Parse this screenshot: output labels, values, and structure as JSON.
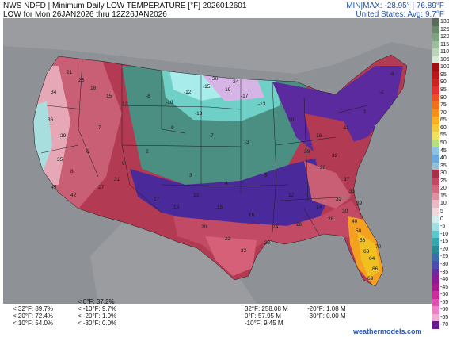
{
  "header": {
    "line1": "NWS NDFD | Minimum Daily LOW TEMPERATURE [°F]  2026012601",
    "line2": "LOW for Mon 26JAN2026 thru 12Z26JAN2026",
    "minmax": "MIN|MAX: -28.95°  | 76.89°F",
    "avg": "United States: Avg: 9.7°F"
  },
  "colorbar": {
    "labels": [
      "130",
      "125",
      "120",
      "115",
      "110",
      "105",
      "100",
      "95",
      "90",
      "85",
      "80",
      "75",
      "70",
      "65",
      "60",
      "55",
      "50",
      "45",
      "40",
      "35",
      "30",
      "25",
      "20",
      "15",
      "10",
      "5",
      "0",
      "-5",
      "-10",
      "-15",
      "-20",
      "-25",
      "-30",
      "-35",
      "-40",
      "-45",
      "-50",
      "-55",
      "-60",
      "-65",
      "-70"
    ],
    "colors": [
      "#5a6b5a",
      "#6b8a6b",
      "#7fa37f",
      "#9bbd9b",
      "#b9d4b9",
      "#d6e8d6",
      "#a01010",
      "#b81818",
      "#cc2222",
      "#e03030",
      "#ec5020",
      "#f07018",
      "#f49018",
      "#f8b020",
      "#f6c838",
      "#f0e060",
      "#b7e07a",
      "#8cc2e8",
      "#6aa8e0",
      "#9ac0d8",
      "#a83048",
      "#c04860",
      "#d06a7e",
      "#e090a0",
      "#ecb8c4",
      "#f0d8dc",
      "#d4ecec",
      "#9ee0e0",
      "#5ac8cc",
      "#38a8b0",
      "#2a8a94",
      "#3a6ea8",
      "#4a4ab0",
      "#6a2aa0",
      "#8a1a98",
      "#aa1890",
      "#cc2c9c",
      "#e050b0",
      "#ee80c8",
      "#f4aad8",
      "#6a1a90"
    ]
  },
  "map_labels": [
    {
      "t": "21"
    },
    {
      "t": "25"
    },
    {
      "t": "18"
    },
    {
      "t": "15"
    },
    {
      "t": "13"
    },
    {
      "t": "-8"
    },
    {
      "t": "-10"
    },
    {
      "t": "-12"
    },
    {
      "t": "-15"
    },
    {
      "t": "-19"
    },
    {
      "t": "-17"
    },
    {
      "t": "-13"
    },
    {
      "t": "-20"
    },
    {
      "t": "-24"
    },
    {
      "t": "-18"
    },
    {
      "t": "-9"
    },
    {
      "t": "-7"
    },
    {
      "t": "-3"
    },
    {
      "t": "2"
    },
    {
      "t": "9"
    },
    {
      "t": "7"
    },
    {
      "t": "6"
    },
    {
      "t": "8"
    },
    {
      "t": "3"
    },
    {
      "t": "4"
    },
    {
      "t": "5"
    },
    {
      "t": "12"
    },
    {
      "t": "14"
    },
    {
      "t": "16"
    },
    {
      "t": "20"
    },
    {
      "t": "22"
    },
    {
      "t": "23"
    },
    {
      "t": "24"
    },
    {
      "t": "26"
    },
    {
      "t": "28"
    },
    {
      "t": "30"
    },
    {
      "t": "32"
    },
    {
      "t": "33"
    },
    {
      "t": "37"
    },
    {
      "t": "39"
    },
    {
      "t": "40"
    },
    {
      "t": "42"
    },
    {
      "t": "45"
    },
    {
      "t": "50"
    },
    {
      "t": "56"
    },
    {
      "t": "63"
    },
    {
      "t": "64"
    },
    {
      "t": "66"
    },
    {
      "t": "69"
    },
    {
      "t": "70"
    },
    {
      "t": "26"
    },
    {
      "t": "39"
    },
    {
      "t": "32"
    },
    {
      "t": "18"
    },
    {
      "t": "11"
    },
    {
      "t": "1"
    },
    {
      "t": "-2"
    },
    {
      "t": "-6"
    },
    {
      "t": "10"
    },
    {
      "t": "17"
    },
    {
      "t": "19"
    },
    {
      "t": "27"
    },
    {
      "t": "31"
    },
    {
      "t": "35"
    },
    {
      "t": "29"
    },
    {
      "t": "36"
    },
    {
      "t": "34"
    },
    {
      "t": "23"
    },
    {
      "t": "15"
    },
    {
      "t": "13"
    }
  ],
  "stats_left": [
    "< 32°F: 89.7%",
    "< 20°F: 72.4%",
    "< 10°F: 54.0%"
  ],
  "stats_mid": [
    "< 0°F: 37.2%",
    "< -10°F: 9.7%",
    "< -20°F: 1.9%",
    "< -30°F: 0.0%"
  ],
  "stats_area1": [
    "32°F: 258.08 M",
    "0°F: 57.95 M",
    "-10°F: 9.45 M"
  ],
  "stats_area2": [
    "-20°F: 1.08 M",
    "-30°F: 0.00 M"
  ],
  "brand": "weathermodels.com"
}
